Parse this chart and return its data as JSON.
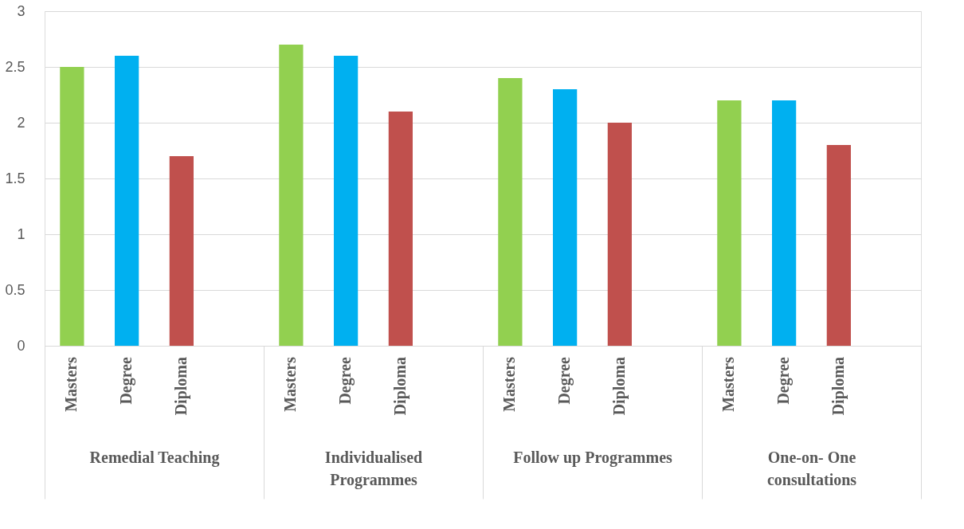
{
  "chart_data": {
    "type": "bar",
    "categories": [
      "Remedial  Teaching",
      "Individualised Programmes",
      "Follow up Programmes",
      "One-on- One consultations"
    ],
    "series": [
      {
        "name": "Masters",
        "color": "#92d050",
        "values": [
          2.5,
          2.7,
          2.4,
          2.2
        ]
      },
      {
        "name": "Degree",
        "color": "#00b0f0",
        "values": [
          2.6,
          2.6,
          2.3,
          2.2
        ]
      },
      {
        "name": "Diploma",
        "color": "#c0504d",
        "values": [
          1.7,
          2.1,
          2.0,
          1.8
        ]
      }
    ],
    "ylim": [
      0,
      3
    ],
    "yticks": [
      0,
      0.5,
      1,
      1.5,
      2,
      2.5,
      3
    ],
    "grid": "y"
  }
}
